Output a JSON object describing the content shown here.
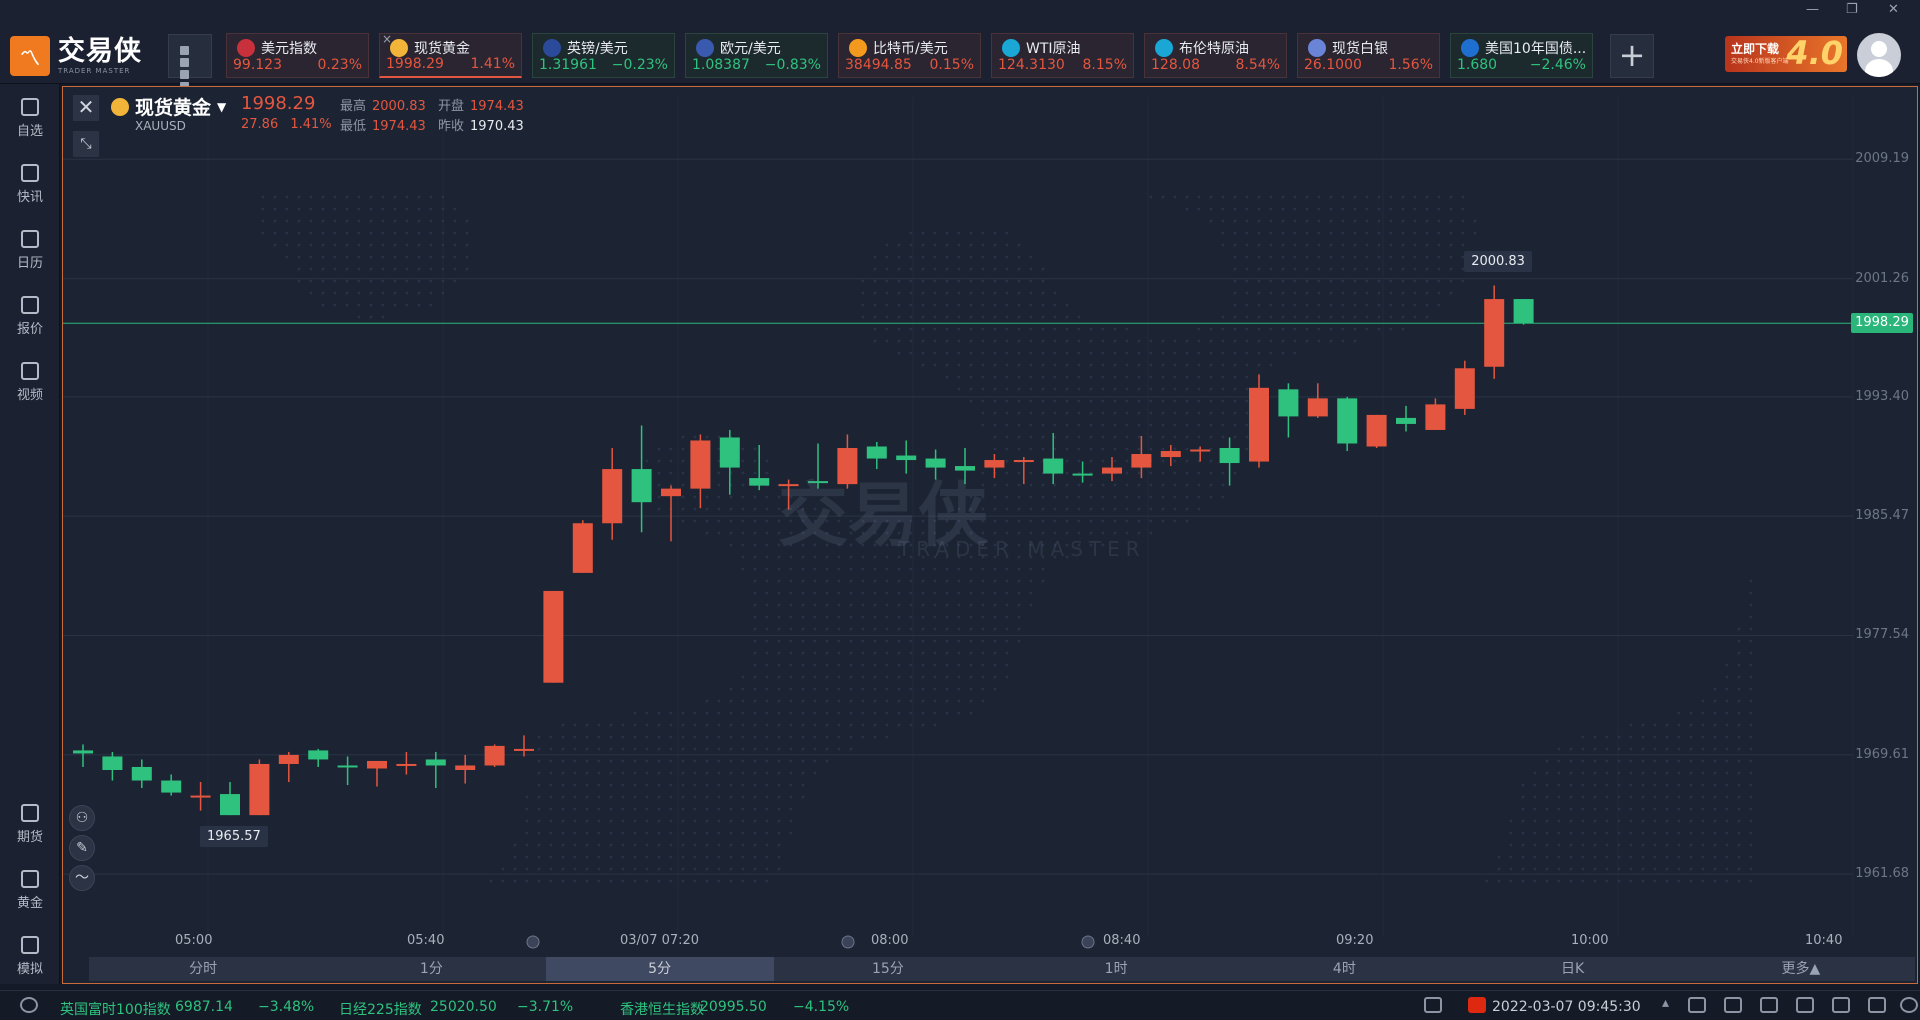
{
  "app": {
    "logo_cn": "交易侠",
    "logo_en": "TRADER MASTER"
  },
  "tickers": [
    {
      "name": "美元指数",
      "price": "99.123",
      "change": "0.23%",
      "dir": "up",
      "flag_color": "#c8313c"
    },
    {
      "name": "现货黄金",
      "price": "1998.29",
      "change": "1.41%",
      "dir": "up",
      "flag_color": "#f2b53a",
      "active": true
    },
    {
      "name": "英镑/美元",
      "price": "1.31961",
      "change": "−0.23%",
      "dir": "down",
      "flag_color": "#2b4a9a"
    },
    {
      "name": "欧元/美元",
      "price": "1.08387",
      "change": "−0.83%",
      "dir": "down",
      "flag_color": "#3a5ab0"
    },
    {
      "name": "比特币/美元",
      "price": "38494.85",
      "change": "0.15%",
      "dir": "up",
      "flag_color": "#f39a1e"
    },
    {
      "name": "WTI原油",
      "price": "124.3130",
      "change": "8.15%",
      "dir": "up",
      "flag_color": "#1aa7d6"
    },
    {
      "name": "布伦特原油",
      "price": "128.08",
      "change": "8.54%",
      "dir": "up",
      "flag_color": "#1aa7d6"
    },
    {
      "name": "现货白银",
      "price": "26.1000",
      "change": "1.56%",
      "dir": "up",
      "flag_color": "#6a84d8"
    },
    {
      "name": "美国10年国债...",
      "price": "1.680",
      "change": "−2.46%",
      "dir": "down",
      "flag_color": "#1f6fd1"
    }
  ],
  "promo": {
    "title": "立即下载",
    "subtitle": "交易侠4.0新版客户端",
    "version": "4.0"
  },
  "sidebar": {
    "top": [
      "自选",
      "快讯",
      "日历",
      "报价",
      "视频"
    ],
    "bottom": [
      "期货",
      "黄金",
      "模拟"
    ]
  },
  "symbol": {
    "name": "现货黄金",
    "code": "XAUUSD",
    "price": "1998.29",
    "change": "27.86",
    "change_pct": "1.41%",
    "high_label": "最高",
    "high": "2000.83",
    "low_label": "最低",
    "low": "1974.43",
    "open_label": "开盘",
    "open": "1974.43",
    "prev_label": "昨收",
    "prev": "1970.43"
  },
  "chart": {
    "y_ticks": [
      "2009.19",
      "2001.26",
      "1993.40",
      "1985.47",
      "1977.54",
      "1969.61",
      "1961.68"
    ],
    "x_ticks": [
      "05:00",
      "05:40",
      "03/07 07:20",
      "08:00",
      "08:40",
      "09:20",
      "10:00",
      "10:40"
    ],
    "current_price": "1998.29",
    "high_bubble": "2000.83",
    "low_bubble": "1965.57",
    "watermark_cn": "交易侠",
    "watermark_en": "TRADER MASTER"
  },
  "chart_data": {
    "type": "candlestick",
    "symbol": "XAUUSD",
    "interval": "5分",
    "ylim": [
      1957.5,
      2012.0
    ],
    "y_ticks": [
      2009.19,
      2001.26,
      1993.4,
      1985.47,
      1977.54,
      1969.61,
      1961.68
    ],
    "candles": [
      {
        "o": 1969.9,
        "h": 1970.3,
        "l": 1968.8,
        "c": 1969.7
      },
      {
        "o": 1969.5,
        "h": 1969.8,
        "l": 1967.9,
        "c": 1968.6
      },
      {
        "o": 1968.8,
        "h": 1969.3,
        "l": 1967.4,
        "c": 1967.9
      },
      {
        "o": 1967.9,
        "h": 1968.3,
        "l": 1966.9,
        "c": 1967.1
      },
      {
        "o": 1966.9,
        "h": 1967.8,
        "l": 1965.9,
        "c": 1966.9
      },
      {
        "o": 1967.0,
        "h": 1967.8,
        "l": 1965.6,
        "c": 1965.6
      },
      {
        "o": 1965.6,
        "h": 1969.3,
        "l": 1965.6,
        "c": 1969.0
      },
      {
        "o": 1969.0,
        "h": 1969.8,
        "l": 1967.8,
        "c": 1969.6
      },
      {
        "o": 1969.9,
        "h": 1970.0,
        "l": 1968.8,
        "c": 1969.3
      },
      {
        "o": 1968.9,
        "h": 1969.5,
        "l": 1967.6,
        "c": 1968.8
      },
      {
        "o": 1968.7,
        "h": 1969.2,
        "l": 1967.5,
        "c": 1969.2
      },
      {
        "o": 1969.0,
        "h": 1969.8,
        "l": 1968.3,
        "c": 1969.0
      },
      {
        "o": 1969.3,
        "h": 1969.8,
        "l": 1967.4,
        "c": 1968.9
      },
      {
        "o": 1968.6,
        "h": 1969.6,
        "l": 1967.7,
        "c": 1968.9
      },
      {
        "o": 1968.9,
        "h": 1970.3,
        "l": 1968.8,
        "c": 1970.2
      },
      {
        "o": 1970.0,
        "h": 1970.9,
        "l": 1969.5,
        "c": 1970.0
      },
      {
        "o": 1974.4,
        "h": 1980.5,
        "l": 1974.4,
        "c": 1980.5
      },
      {
        "o": 1981.7,
        "h": 1985.2,
        "l": 1981.7,
        "c": 1985.0
      },
      {
        "o": 1985.0,
        "h": 1990.0,
        "l": 1983.9,
        "c": 1988.6
      },
      {
        "o": 1988.6,
        "h": 1991.5,
        "l": 1984.4,
        "c": 1986.4
      },
      {
        "o": 1986.8,
        "h": 1987.5,
        "l": 1983.8,
        "c": 1987.3
      },
      {
        "o": 1987.3,
        "h": 1990.9,
        "l": 1986.0,
        "c": 1990.5
      },
      {
        "o": 1990.7,
        "h": 1991.2,
        "l": 1986.9,
        "c": 1988.7
      },
      {
        "o": 1988.0,
        "h": 1990.2,
        "l": 1987.2,
        "c": 1987.5
      },
      {
        "o": 1987.6,
        "h": 1987.9,
        "l": 1985.9,
        "c": 1987.6
      },
      {
        "o": 1987.8,
        "h": 1990.3,
        "l": 1987.3,
        "c": 1987.7
      },
      {
        "o": 1987.6,
        "h": 1990.9,
        "l": 1987.3,
        "c": 1990.0
      },
      {
        "o": 1990.1,
        "h": 1990.4,
        "l": 1988.6,
        "c": 1989.3
      },
      {
        "o": 1989.5,
        "h": 1990.5,
        "l": 1988.3,
        "c": 1989.2
      },
      {
        "o": 1989.3,
        "h": 1989.9,
        "l": 1987.9,
        "c": 1988.7
      },
      {
        "o": 1988.8,
        "h": 1990.0,
        "l": 1987.6,
        "c": 1988.5
      },
      {
        "o": 1988.7,
        "h": 1989.6,
        "l": 1988.0,
        "c": 1989.2
      },
      {
        "o": 1989.2,
        "h": 1989.4,
        "l": 1987.6,
        "c": 1989.2
      },
      {
        "o": 1989.3,
        "h": 1991.0,
        "l": 1987.6,
        "c": 1988.3
      },
      {
        "o": 1988.3,
        "h": 1989.1,
        "l": 1987.7,
        "c": 1988.2
      },
      {
        "o": 1988.3,
        "h": 1989.4,
        "l": 1987.8,
        "c": 1988.7
      },
      {
        "o": 1988.7,
        "h": 1990.8,
        "l": 1988.0,
        "c": 1989.6
      },
      {
        "o": 1989.4,
        "h": 1990.2,
        "l": 1988.8,
        "c": 1989.8
      },
      {
        "o": 1989.9,
        "h": 1990.1,
        "l": 1989.1,
        "c": 1989.9
      },
      {
        "o": 1990.0,
        "h": 1990.7,
        "l": 1987.5,
        "c": 1989.0
      },
      {
        "o": 1989.1,
        "h": 1994.9,
        "l": 1988.7,
        "c": 1994.0
      },
      {
        "o": 1993.9,
        "h": 1994.3,
        "l": 1990.7,
        "c": 1992.1
      },
      {
        "o": 1992.1,
        "h": 1994.3,
        "l": 1992.0,
        "c": 1993.3
      },
      {
        "o": 1993.3,
        "h": 1993.4,
        "l": 1989.8,
        "c": 1990.3
      },
      {
        "o": 1990.1,
        "h": 1992.2,
        "l": 1990.0,
        "c": 1992.2
      },
      {
        "o": 1992.0,
        "h": 1992.8,
        "l": 1991.1,
        "c": 1991.6
      },
      {
        "o": 1991.2,
        "h": 1993.3,
        "l": 1991.2,
        "c": 1992.9
      },
      {
        "o": 1992.6,
        "h": 1995.8,
        "l": 1992.2,
        "c": 1995.3
      },
      {
        "o": 1995.4,
        "h": 2000.8,
        "l": 1994.6,
        "c": 1999.9
      },
      {
        "o": 1999.9,
        "h": 1999.9,
        "l": 1998.2,
        "c": 1998.3
      }
    ]
  },
  "timeframes": [
    "分时",
    "1分",
    "5分",
    "15分",
    "1时",
    "4时",
    "日K",
    "更多▲"
  ],
  "active_timeframe": "5分",
  "bottombar": {
    "indices": [
      {
        "name": "英国富时100指数",
        "value": "6987.14",
        "change": "−3.48%"
      },
      {
        "name": "日经225指数",
        "value": "25020.50",
        "change": "−3.71%"
      },
      {
        "name": "香港恒生指数",
        "value": "20995.50",
        "change": "−4.15%"
      }
    ],
    "datetime": "2022-03-07 09:45:30"
  },
  "colors": {
    "up": "#e4563f",
    "down": "#2ec27e",
    "price_line": "#2ab57a",
    "accent": "#f07a1f"
  }
}
